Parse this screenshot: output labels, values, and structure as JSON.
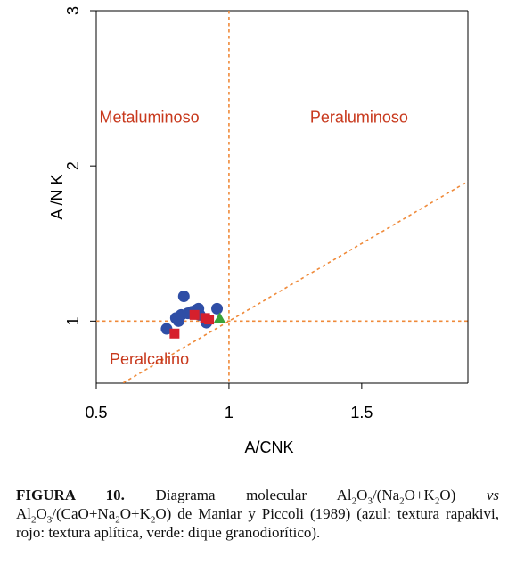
{
  "chart_data": {
    "type": "scatter",
    "xlabel": "A/CNK",
    "ylabel": "A /N K",
    "xlim": [
      0.5,
      1.9
    ],
    "ylim": [
      0.6,
      3.0
    ],
    "x_ticks": [
      {
        "value": 0.5,
        "label": "0.5"
      },
      {
        "value": 1.0,
        "label": "1"
      },
      {
        "value": 1.5,
        "label": "1.5"
      }
    ],
    "y_ticks": [
      {
        "value": 1,
        "label": "1"
      },
      {
        "value": 2,
        "label": "2"
      },
      {
        "value": 3,
        "label": "3"
      }
    ],
    "grid": false,
    "reference_lines": [
      {
        "kind": "vertical",
        "x": 1.0,
        "color": "#ef8a3a"
      },
      {
        "kind": "horizontal",
        "y": 1.0,
        "color": "#ef8a3a"
      },
      {
        "kind": "identity",
        "from": [
          0.5,
          0.5
        ],
        "to": [
          1.9,
          1.9
        ],
        "color": "#ef8a3a"
      }
    ],
    "region_labels": [
      {
        "text": "Metaluminoso",
        "x": 0.7,
        "y": 2.28,
        "color": "#c8391d"
      },
      {
        "text": "Peraluminoso",
        "x": 1.49,
        "y": 2.28,
        "color": "#c8391d"
      },
      {
        "text": "Peralcalino",
        "x": 0.7,
        "y": 0.72,
        "color": "#c8391d"
      }
    ],
    "series": [
      {
        "marker": "circle",
        "color": "#2f4ea6",
        "points": [
          [
            0.765,
            0.95
          ],
          [
            0.8,
            1.02
          ],
          [
            0.81,
            1.0
          ],
          [
            0.82,
            1.04
          ],
          [
            0.83,
            1.16
          ],
          [
            0.845,
            1.05
          ],
          [
            0.86,
            1.06
          ],
          [
            0.875,
            1.07
          ],
          [
            0.885,
            1.08
          ],
          [
            0.89,
            1.04
          ],
          [
            0.915,
            0.99
          ],
          [
            0.955,
            1.08
          ]
        ]
      },
      {
        "marker": "square",
        "color": "#d6202c",
        "points": [
          [
            0.795,
            0.92
          ],
          [
            0.87,
            1.04
          ],
          [
            0.91,
            1.02
          ],
          [
            0.925,
            1.01
          ]
        ]
      },
      {
        "marker": "triangle",
        "color": "#3aa339",
        "points": [
          [
            0.965,
            1.02
          ]
        ]
      }
    ]
  },
  "caption": {
    "label": "FIGURA 10.",
    "t1": " Diagrama molecular Al",
    "s1": "2",
    "t2": "O",
    "s2": "3",
    "t3": "/(Na",
    "s3": "2",
    "t4": "O+K",
    "s4": "2",
    "t5": "O) ",
    "vs": "vs",
    "t6": " Al",
    "s6": "2",
    "t7": "O",
    "s7": "3",
    "t8": "/(CaO+Na",
    "s8": "2",
    "t9": "O+K",
    "s9": "2",
    "t10": "O) de Maniar y Piccoli (1989) (azul: textura rapakivi, rojo: textura aplítica, verde: dique granodiorítico)."
  }
}
